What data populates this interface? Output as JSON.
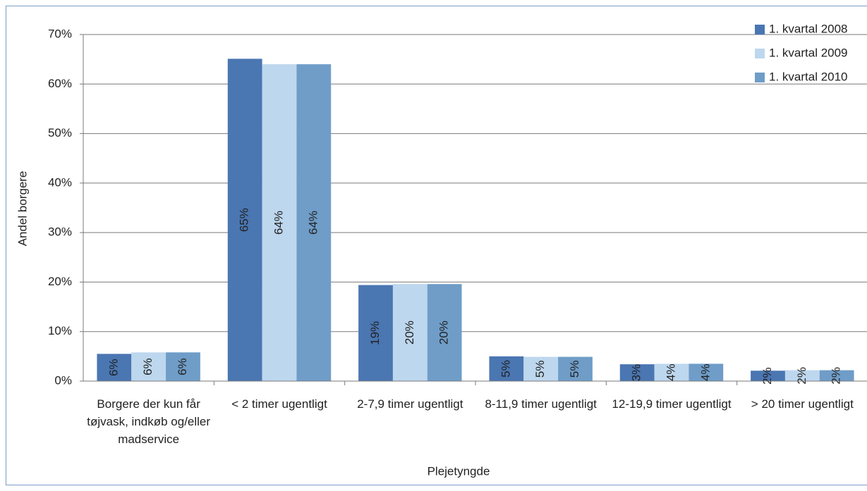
{
  "chart_data": {
    "type": "bar",
    "x_label": "Plejetyngde",
    "y_label": "Andel borgere",
    "categories": [
      "Borgere der kun får tøjvask, indkøb og/eller madservice",
      "< 2 timer ugentligt",
      "2-7,9 timer ugentligt",
      "8-11,9 timer ugentligt",
      "12-19,9 timer ugentligt",
      "> 20 timer ugentligt"
    ],
    "series": [
      {
        "name": "1. kvartal 2008",
        "color": "#4a76b2",
        "values": [
          5.5,
          65.1,
          19.4,
          5.0,
          3.4,
          2.1
        ],
        "value_labels": [
          "6%",
          "65%",
          "19%",
          "5%",
          "3%",
          "2%"
        ]
      },
      {
        "name": "1. kvartal 2009",
        "color": "#bdd7ee",
        "values": [
          5.8,
          64.0,
          19.6,
          4.9,
          3.5,
          2.2
        ],
        "value_labels": [
          "6%",
          "64%",
          "20%",
          "5%",
          "4%",
          "2%"
        ]
      },
      {
        "name": "1. kvartal 2010",
        "color": "#6f9dc8",
        "values": [
          5.8,
          64.0,
          19.6,
          4.9,
          3.5,
          2.2
        ],
        "value_labels": [
          "6%",
          "64%",
          "20%",
          "5%",
          "4%",
          "2%"
        ]
      }
    ],
    "ylim": [
      0,
      70
    ],
    "yticks": [
      {
        "value": 0,
        "label": "0%"
      },
      {
        "value": 10,
        "label": "10%"
      },
      {
        "value": 20,
        "label": "20%"
      },
      {
        "value": 30,
        "label": "30%"
      },
      {
        "value": 40,
        "label": "40%"
      },
      {
        "value": 50,
        "label": "50%"
      },
      {
        "value": 60,
        "label": "60%"
      },
      {
        "value": 70,
        "label": "70%"
      }
    ],
    "grid": true,
    "legend": "top-right"
  }
}
